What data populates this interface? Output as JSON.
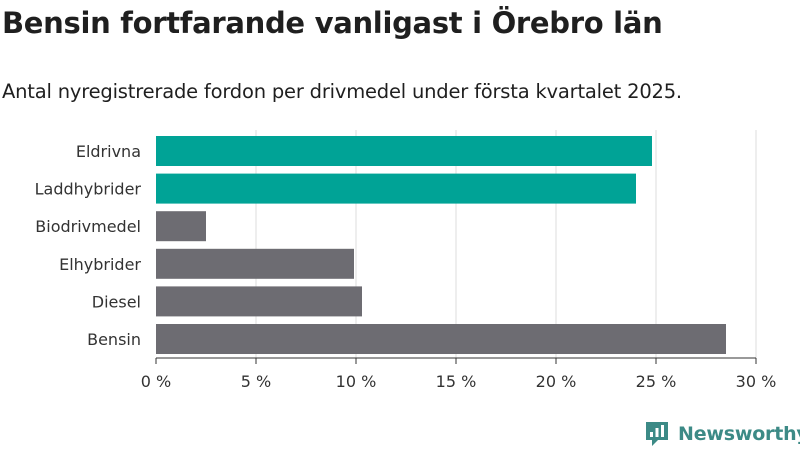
{
  "header": {
    "title": "Bensin fortfarande vanligast i Örebro län",
    "subtitle": "Antal nyregistrerade fordon per drivmedel under första kvartalet 2025."
  },
  "brand": {
    "name": "Newsworthy",
    "logo_icon": "newsworthy-logo-icon",
    "logo_color": "#3c8a86"
  },
  "chart_data": {
    "type": "bar",
    "orientation": "horizontal",
    "title": "Bensin fortfarande vanligast i Örebro län",
    "subtitle": "Antal nyregistrerade fordon per drivmedel under första kvartalet 2025.",
    "categories": [
      "Eldrivna",
      "Laddhybrider",
      "Biodrivmedel",
      "Elhybrider",
      "Diesel",
      "Bensin"
    ],
    "values": [
      24.8,
      24.0,
      2.5,
      9.9,
      10.3,
      28.5
    ],
    "bar_colors": [
      "#00a396",
      "#00a396",
      "#6d6c72",
      "#6d6c72",
      "#6d6c72",
      "#6d6c72"
    ],
    "xlim": [
      0,
      30
    ],
    "xticks": [
      0,
      5,
      10,
      15,
      20,
      25,
      30
    ],
    "xtick_labels": [
      "0 %",
      "5 %",
      "10 %",
      "15 %",
      "20 %",
      "25 %",
      "30 %"
    ],
    "xlabel": "",
    "ylabel": "",
    "grid": "vertical",
    "legend": "none"
  }
}
